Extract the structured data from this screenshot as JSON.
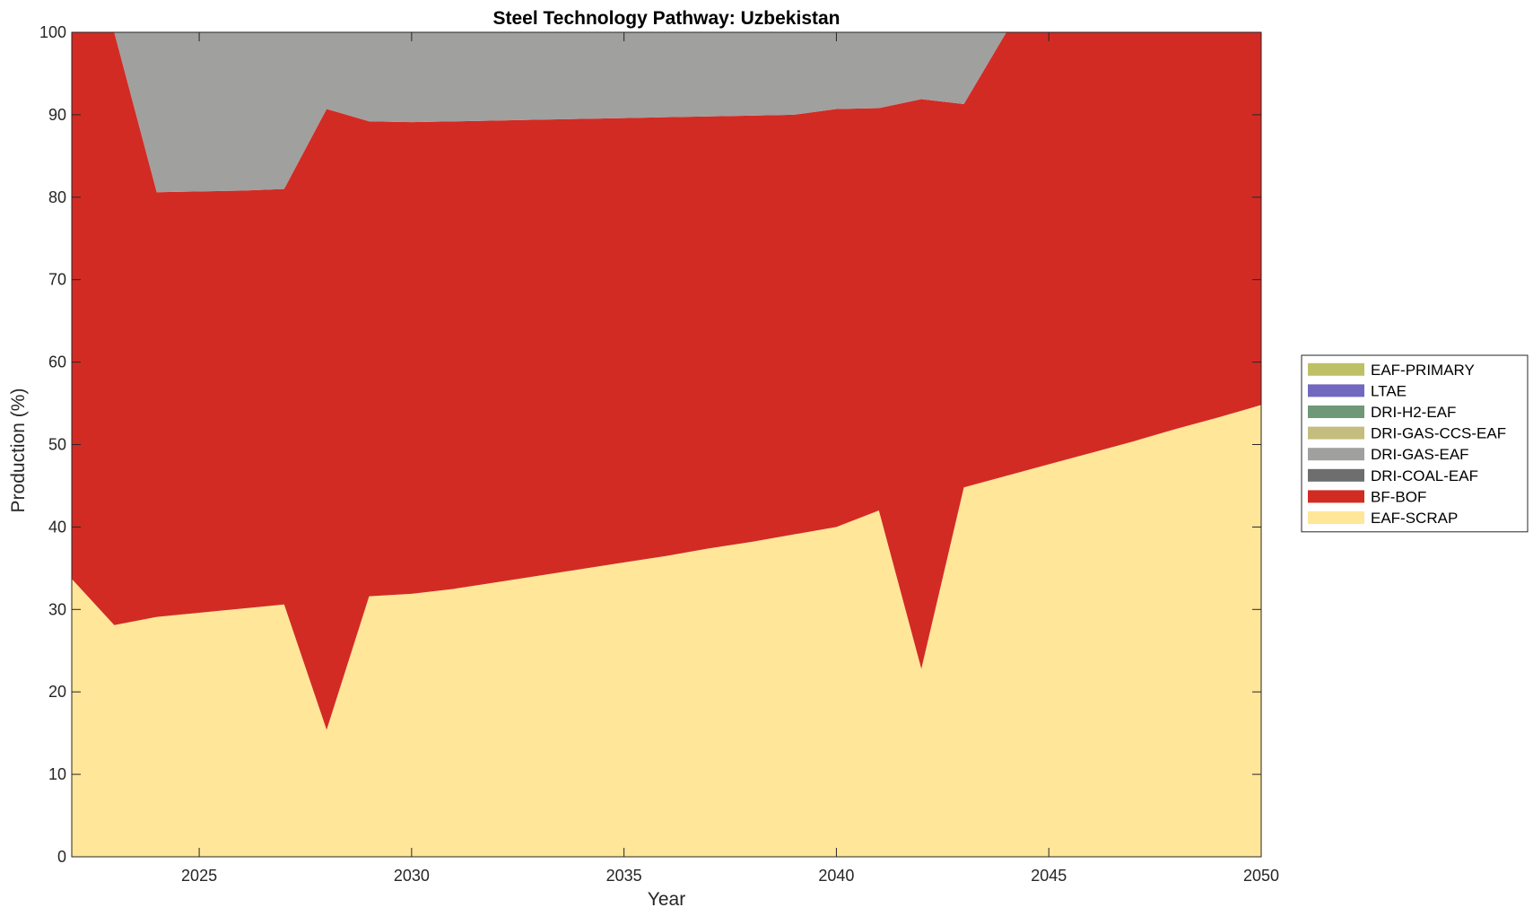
{
  "chart_data": {
    "type": "area",
    "stacked": true,
    "title": "Steel Technology Pathway: Uzbekistan",
    "xlabel": "Year",
    "ylabel": "Production (%)",
    "xlim": [
      2022,
      2050
    ],
    "ylim": [
      0,
      100
    ],
    "xticks": [
      2025,
      2030,
      2035,
      2040,
      2045,
      2050
    ],
    "yticks": [
      0,
      10,
      20,
      30,
      40,
      50,
      60,
      70,
      80,
      90,
      100
    ],
    "grid": false,
    "legend_position": "right",
    "x": [
      2022,
      2023,
      2024,
      2025,
      2026,
      2027,
      2028,
      2029,
      2030,
      2031,
      2032,
      2033,
      2034,
      2035,
      2036,
      2037,
      2038,
      2039,
      2040,
      2041,
      2042,
      2043,
      2044,
      2045,
      2046,
      2047,
      2048,
      2049,
      2050
    ],
    "series": [
      {
        "name": "EAF-SCRAP",
        "color": "#FFE699",
        "values": [
          33.7,
          28.1,
          29.1,
          29.6,
          30.1,
          30.6,
          15.4,
          31.6,
          31.9,
          32.5,
          33.3,
          34.1,
          34.9,
          35.7,
          36.5,
          37.4,
          38.2,
          39.1,
          40.0,
          42.0,
          22.8,
          44.8,
          46.2,
          47.6,
          49.0,
          50.4,
          51.9,
          53.3,
          54.8
        ]
      },
      {
        "name": "BF-BOF",
        "color": "#D22B24",
        "values": [
          66.3,
          71.9,
          51.5,
          51.1,
          50.7,
          50.4,
          75.3,
          57.6,
          57.2,
          56.7,
          56.0,
          55.3,
          54.6,
          53.9,
          53.2,
          52.4,
          51.7,
          50.9,
          50.7,
          48.8,
          69.1,
          46.5,
          53.8,
          52.4,
          51.0,
          49.6,
          48.1,
          46.7,
          45.2
        ]
      },
      {
        "name": "DRI-COAL-EAF",
        "color": "#6E6E6E",
        "values": [
          0,
          0,
          0,
          0,
          0,
          0,
          0,
          0,
          0,
          0,
          0,
          0,
          0,
          0,
          0,
          0,
          0,
          0,
          0,
          0,
          0,
          0,
          0,
          0,
          0,
          0,
          0,
          0,
          0
        ]
      },
      {
        "name": "DRI-GAS-EAF",
        "color": "#A0A09E",
        "values": [
          0,
          0,
          19.4,
          19.3,
          19.2,
          19.0,
          9.3,
          10.8,
          10.9,
          10.8,
          10.7,
          10.6,
          10.5,
          10.4,
          10.3,
          10.2,
          10.1,
          10.0,
          9.3,
          9.2,
          8.1,
          8.7,
          0,
          0,
          0,
          0,
          0,
          0,
          0
        ]
      },
      {
        "name": "DRI-GAS-CCS-EAF",
        "color": "#C4BD7E",
        "values": [
          0,
          0,
          0,
          0,
          0,
          0,
          0,
          0,
          0,
          0,
          0,
          0,
          0,
          0,
          0,
          0,
          0,
          0,
          0,
          0,
          0,
          0,
          0,
          0,
          0,
          0,
          0,
          0,
          0
        ]
      },
      {
        "name": "DRI-H2-EAF",
        "color": "#6E9877",
        "values": [
          0,
          0,
          0,
          0,
          0,
          0,
          0,
          0,
          0,
          0,
          0,
          0,
          0,
          0,
          0,
          0,
          0,
          0,
          0,
          0,
          0,
          0,
          0,
          0,
          0,
          0,
          0,
          0,
          0
        ]
      },
      {
        "name": "LTAE",
        "color": "#7268BF",
        "values": [
          0,
          0,
          0,
          0,
          0,
          0,
          0,
          0,
          0,
          0,
          0,
          0,
          0,
          0,
          0,
          0,
          0,
          0,
          0,
          0,
          0,
          0,
          0,
          0,
          0,
          0,
          0,
          0,
          0
        ]
      },
      {
        "name": "EAF-PRIMARY",
        "color": "#BDC064",
        "values": [
          0,
          0,
          0,
          0,
          0,
          0,
          0,
          0,
          0,
          0,
          0,
          0,
          0,
          0,
          0,
          0,
          0,
          0,
          0,
          0,
          0,
          0,
          0,
          0,
          0,
          0,
          0,
          0,
          0
        ]
      }
    ],
    "legend_order": [
      "EAF-PRIMARY",
      "LTAE",
      "DRI-H2-EAF",
      "DRI-GAS-CCS-EAF",
      "DRI-GAS-EAF",
      "DRI-COAL-EAF",
      "BF-BOF",
      "EAF-SCRAP"
    ]
  }
}
